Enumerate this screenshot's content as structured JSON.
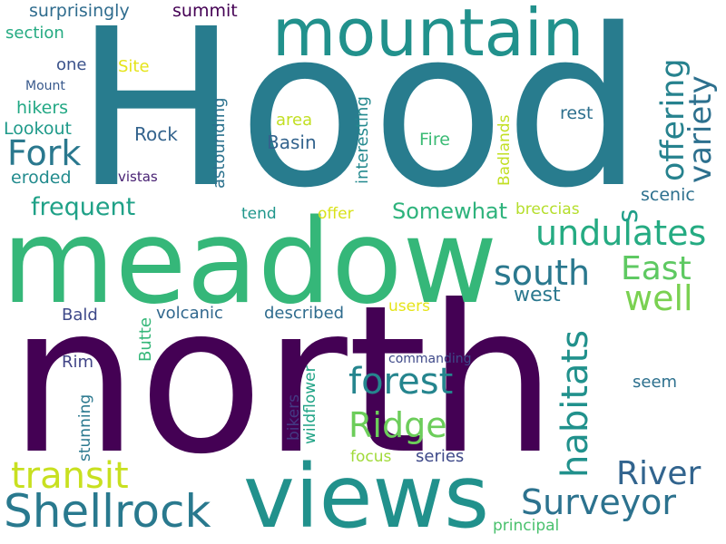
{
  "words": [
    {
      "text": "north",
      "color": "#440154"
    },
    {
      "text": "Hood",
      "color": "#287c8e"
    },
    {
      "text": "meadow",
      "color": "#35b779"
    },
    {
      "text": "views",
      "color": "#21918c"
    },
    {
      "text": "mountain",
      "color": "#21918c"
    },
    {
      "text": "Shellrock",
      "color": "#29798e"
    },
    {
      "text": "transit",
      "color": "#c8e020"
    },
    {
      "text": "Surveyor",
      "color": "#2c728e"
    },
    {
      "text": "River",
      "color": "#32648e"
    },
    {
      "text": "forest",
      "color": "#25858e"
    },
    {
      "text": "Ridge",
      "color": "#6ccd5a"
    },
    {
      "text": "habitats",
      "color": "#21918c"
    },
    {
      "text": "undulates",
      "color": "#25ab82"
    },
    {
      "text": "south",
      "color": "#2a788e"
    },
    {
      "text": "East",
      "color": "#5ec962"
    },
    {
      "text": "well",
      "color": "#7ad151"
    },
    {
      "text": "Fork",
      "color": "#2a788e"
    },
    {
      "text": "offering",
      "color": "#26828e"
    },
    {
      "text": "variety",
      "color": "#2d708e"
    },
    {
      "text": "s",
      "color": "#1f9e89"
    },
    {
      "text": "Somewhat",
      "color": "#2eb37c"
    },
    {
      "text": "frequent",
      "color": "#1fa187"
    },
    {
      "text": "west",
      "color": "#2a788e"
    },
    {
      "text": "scenic",
      "color": "#2d708e"
    },
    {
      "text": "summit",
      "color": "#440154"
    },
    {
      "text": "surprisingly",
      "color": "#2f6c8e"
    },
    {
      "text": "section",
      "color": "#25ab82"
    },
    {
      "text": "one",
      "color": "#3b528b"
    },
    {
      "text": "Site",
      "color": "#e5e419"
    },
    {
      "text": "Mount",
      "color": "#38598c"
    },
    {
      "text": "hikers",
      "color": "#22a884"
    },
    {
      "text": "Lookout",
      "color": "#1f9a8a"
    },
    {
      "text": "eroded",
      "color": "#228b8d"
    },
    {
      "text": "vistas",
      "color": "#482173"
    },
    {
      "text": "Rock",
      "color": "#33638d"
    },
    {
      "text": "Basin",
      "color": "#33638d"
    },
    {
      "text": "Fire",
      "color": "#3bbb75"
    },
    {
      "text": "area",
      "color": "#c2df23"
    },
    {
      "text": "rest",
      "color": "#2d708e"
    },
    {
      "text": "astounding",
      "color": "#2c728e"
    },
    {
      "text": "interesting",
      "color": "#23898e"
    },
    {
      "text": "Badlands",
      "color": "#c2df23"
    },
    {
      "text": "breccias",
      "color": "#b5de2b"
    },
    {
      "text": "tend",
      "color": "#1f968b"
    },
    {
      "text": "offer",
      "color": "#d8e219"
    },
    {
      "text": "users",
      "color": "#e5e419"
    },
    {
      "text": "Bald",
      "color": "#3e4989"
    },
    {
      "text": "volcanic",
      "color": "#31688e"
    },
    {
      "text": "described",
      "color": "#2f6c8e"
    },
    {
      "text": "Butte",
      "color": "#35b779"
    },
    {
      "text": "commanding",
      "color": "#3e4989"
    },
    {
      "text": "Rim",
      "color": "#414487"
    },
    {
      "text": "stunning",
      "color": "#2a788e"
    },
    {
      "text": "bikers",
      "color": "#443983"
    },
    {
      "text": "wildflower",
      "color": "#20a386"
    },
    {
      "text": "seem",
      "color": "#2d708e"
    },
    {
      "text": "focus",
      "color": "#a0da39"
    },
    {
      "text": "series",
      "color": "#3e4989"
    },
    {
      "text": "principal",
      "color": "#4ac16d"
    }
  ]
}
